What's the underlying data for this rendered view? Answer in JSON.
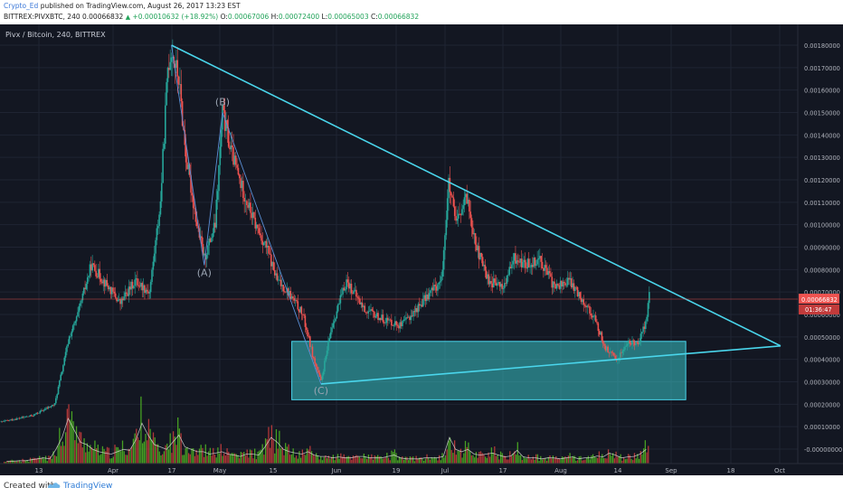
{
  "header": {
    "author": "Crypto_Ed",
    "published": " published on TradingView.com, August 26, 2017 13:23 EST",
    "ticker_line_prefix": "BITTREX:PIVXBTC, 240  0.00066832 ",
    "arrow": "▲",
    "change": " +0.00010632 (+18.92%) ",
    "o_label": "O:",
    "o_value": "0.00067006",
    "h_label": " H:",
    "h_value": "0.00072400",
    "l_label": " L:",
    "l_value": "0.00065003",
    "c_label": " C:",
    "c_value": "0.00066832"
  },
  "footer": {
    "created_with": "Created with",
    "brand": "TradingView"
  },
  "colors": {
    "background": "#131722",
    "up": "#26a69a",
    "down": "#ef5350",
    "trendline": "#4ad6ec",
    "zone_fill": "#38c3c7",
    "volume_up": "#4caf22",
    "volume_down": "#c23b3b",
    "price_tag": "#ef5350"
  },
  "chart_data": {
    "type": "candlestick",
    "title": "Pivx / Bitcoin, 240, BITTREX",
    "current_price_label": "0.00066832",
    "countdown_label": "01:36:47",
    "x_tick_labels": [
      "13",
      "Apr",
      "17",
      "May",
      "15",
      "Jun",
      "19",
      "Jul",
      "17",
      "Aug",
      "14",
      "Sep",
      "18",
      "Oct"
    ],
    "y_tick_labels": [
      "0.00180000",
      "0.00170000",
      "0.00160000",
      "0.00150000",
      "0.00140000",
      "0.00130000",
      "0.00120000",
      "0.00110000",
      "0.00100000",
      "0.00090000",
      "0.00080000",
      "0.00070000",
      "0.00060000",
      "0.00050000",
      "0.00040000",
      "0.00030000",
      "0.00020000",
      "0.00010000",
      "-0.00000000"
    ],
    "ylim": [
      -1e-05,
      0.00185
    ],
    "grid": true,
    "price_path": [
      [
        "2017-03-01",
        0.00012
      ],
      [
        "2017-03-10",
        0.00015
      ],
      [
        "2017-03-16",
        0.0002
      ],
      [
        "2017-03-20",
        0.0005
      ],
      [
        "2017-03-22",
        0.00058
      ],
      [
        "2017-03-26",
        0.00082
      ],
      [
        "2017-03-28",
        0.00078
      ],
      [
        "2017-04-03",
        0.00065
      ],
      [
        "2017-04-07",
        0.00075
      ],
      [
        "2017-04-11",
        0.0007
      ],
      [
        "2017-04-14",
        0.0011
      ],
      [
        "2017-04-16",
        0.0017
      ],
      [
        "2017-04-17",
        0.00178
      ],
      [
        "2017-04-19",
        0.00165
      ],
      [
        "2017-04-21",
        0.0013
      ],
      [
        "2017-04-24",
        0.001
      ],
      [
        "2017-04-26",
        0.00085
      ],
      [
        "2017-04-29",
        0.001
      ],
      [
        "2017-05-01",
        0.0015
      ],
      [
        "2017-05-03",
        0.00135
      ],
      [
        "2017-05-06",
        0.00118
      ],
      [
        "2017-05-10",
        0.001
      ],
      [
        "2017-05-13",
        0.0009
      ],
      [
        "2017-05-16",
        0.00075
      ],
      [
        "2017-05-19",
        0.0007
      ],
      [
        "2017-05-23",
        0.0006
      ],
      [
        "2017-05-26",
        0.0004
      ],
      [
        "2017-05-28",
        0.0003
      ],
      [
        "2017-05-31",
        0.00055
      ],
      [
        "2017-06-04",
        0.00075
      ],
      [
        "2017-06-09",
        0.00062
      ],
      [
        "2017-06-14",
        0.00058
      ],
      [
        "2017-06-19",
        0.00055
      ],
      [
        "2017-06-23",
        0.00062
      ],
      [
        "2017-06-27",
        0.0007
      ],
      [
        "2017-06-30",
        0.00075
      ],
      [
        "2017-07-02",
        0.00118
      ],
      [
        "2017-07-04",
        0.001
      ],
      [
        "2017-07-07",
        0.00112
      ],
      [
        "2017-07-10",
        0.00088
      ],
      [
        "2017-07-13",
        0.00075
      ],
      [
        "2017-07-17",
        0.00072
      ],
      [
        "2017-07-20",
        0.00085
      ],
      [
        "2017-07-23",
        0.00082
      ],
      [
        "2017-07-27",
        0.00085
      ],
      [
        "2017-07-31",
        0.00072
      ],
      [
        "2017-08-04",
        0.00075
      ],
      [
        "2017-08-08",
        0.00066
      ],
      [
        "2017-08-11",
        0.00058
      ],
      [
        "2017-08-14",
        0.00045
      ],
      [
        "2017-08-17",
        0.0004
      ],
      [
        "2017-08-20",
        0.00047
      ],
      [
        "2017-08-23",
        0.00048
      ],
      [
        "2017-08-25",
        0.00056
      ],
      [
        "2017-08-26",
        0.00068
      ]
    ],
    "annotations": [
      {
        "label": "(A)",
        "date": "2017-04-26",
        "price": 0.00082
      },
      {
        "label": "(B)",
        "date": "2017-05-01",
        "price": 0.0015
      },
      {
        "label": "(C)",
        "date": "2017-05-28",
        "price": 0.00029
      }
    ],
    "trendlines": [
      {
        "name": "upper",
        "from": [
          "2017-04-17",
          0.0018
        ],
        "to": [
          "2017-10-01",
          0.00046
        ]
      },
      {
        "name": "lower",
        "from": [
          "2017-05-28",
          0.00029
        ],
        "to": [
          "2017-10-01",
          0.00046
        ]
      }
    ],
    "zone": {
      "from_date": "2017-05-20",
      "to_date": "2017-09-05",
      "low": 0.00022,
      "high": 0.00048
    },
    "volume_levels": [
      0.05,
      0.05,
      0.06,
      0.06,
      0.08,
      0.1,
      0.12,
      0.1,
      0.3,
      0.55,
      0.95,
      0.7,
      0.45,
      0.4,
      0.3,
      0.25,
      0.22,
      0.2,
      0.25,
      0.3,
      0.28,
      0.5,
      0.85,
      0.6,
      0.4,
      0.35,
      0.3,
      0.45,
      0.6,
      0.35,
      0.3,
      0.25,
      0.25,
      0.2,
      0.22,
      0.25,
      0.2,
      0.18,
      0.15,
      0.2,
      0.2,
      0.18,
      0.35,
      0.55,
      0.45,
      0.3,
      0.25,
      0.22,
      0.2,
      0.25,
      0.18,
      0.15,
      0.15,
      0.12,
      0.14,
      0.12,
      0.12,
      0.15,
      0.15,
      0.12,
      0.12,
      0.12,
      0.15,
      0.18,
      0.12,
      0.1,
      0.1,
      0.1,
      0.12,
      0.12,
      0.12,
      0.15,
      0.55,
      0.3,
      0.25,
      0.3,
      0.2,
      0.18,
      0.2,
      0.22,
      0.18,
      0.14,
      0.16,
      0.28,
      0.14,
      0.12,
      0.12,
      0.1,
      0.12,
      0.12,
      0.1,
      0.12,
      0.14,
      0.1,
      0.12,
      0.12,
      0.16,
      0.14,
      0.22,
      0.18,
      0.12,
      0.14,
      0.15,
      0.2,
      0.3
    ]
  }
}
